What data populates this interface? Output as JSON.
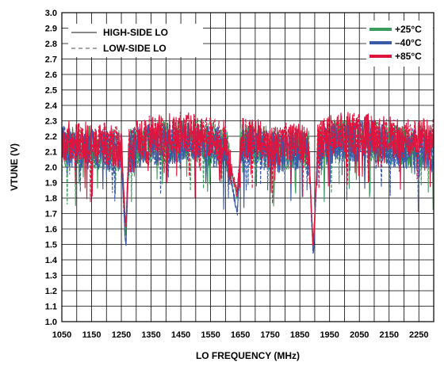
{
  "chart_data": {
    "type": "line",
    "xlabel": "LO FREQUENCY (MHz)",
    "ylabel": "VTUNE (V)",
    "xlim": [
      1050,
      2300
    ],
    "ylim": [
      1.0,
      3.0
    ],
    "grid": true,
    "x_ticks": [
      "1050",
      "1150",
      "1250",
      "1350",
      "1450",
      "1550",
      "1650",
      "1750",
      "1850",
      "1950",
      "2050",
      "2150",
      "2250"
    ],
    "y_ticks": [
      "1.0",
      "1.1",
      "1.2",
      "1.3",
      "1.4",
      "1.5",
      "1.6",
      "1.7",
      "1.8",
      "1.9",
      "2.0",
      "2.1",
      "2.2",
      "2.3",
      "2.4",
      "2.5",
      "2.6",
      "2.7",
      "2.8",
      "2.9",
      "3.0"
    ],
    "legend_style": {
      "position": "top-left",
      "entries": [
        {
          "label": "HIGH-SIDE LO",
          "dash": "solid"
        },
        {
          "label": "LOW-SIDE LO",
          "dash": "dashed"
        }
      ]
    },
    "legend_temp": {
      "position": "top-right",
      "entries": [
        {
          "label": "+25°C",
          "color": "#3a9c5a"
        },
        {
          "label": "–40°C",
          "color": "#3a5aa8"
        },
        {
          "label": "+85°C",
          "color": "#e0143c"
        }
      ]
    },
    "series": [
      {
        "name": "+25°C",
        "color": "#3a9c5a",
        "x": [
          1050,
          1100,
          1150,
          1200,
          1250,
          1265,
          1275,
          1300,
          1350,
          1400,
          1450,
          1500,
          1550,
          1600,
          1640,
          1650,
          1700,
          1750,
          1800,
          1850,
          1880,
          1895,
          1910,
          1950,
          2000,
          2050,
          2100,
          2150,
          2200,
          2250,
          2300
        ],
        "y": [
          2.15,
          2.12,
          2.13,
          2.12,
          2.1,
          1.55,
          2.1,
          2.14,
          2.16,
          2.16,
          2.18,
          2.17,
          2.16,
          2.14,
          1.8,
          2.14,
          2.15,
          2.12,
          2.12,
          2.13,
          2.1,
          1.48,
          2.12,
          2.16,
          2.17,
          2.18,
          2.17,
          2.15,
          2.13,
          2.14,
          2.12
        ]
      },
      {
        "name": "–40°C",
        "color": "#3a5aa8",
        "x": [
          1050,
          1100,
          1150,
          1200,
          1250,
          1265,
          1275,
          1300,
          1350,
          1400,
          1450,
          1500,
          1550,
          1600,
          1640,
          1650,
          1700,
          1750,
          1800,
          1850,
          1880,
          1895,
          1910,
          1950,
          2000,
          2050,
          2100,
          2150,
          2200,
          2250,
          2300
        ],
        "y": [
          2.14,
          2.1,
          2.12,
          2.11,
          2.08,
          1.45,
          2.09,
          2.13,
          2.15,
          2.15,
          2.17,
          2.16,
          2.14,
          2.12,
          1.7,
          2.13,
          2.14,
          2.1,
          2.1,
          2.11,
          2.08,
          1.4,
          2.1,
          2.15,
          2.16,
          2.17,
          2.16,
          2.14,
          2.12,
          2.13,
          2.1
        ]
      },
      {
        "name": "+85°C",
        "color": "#e0143c",
        "x": [
          1050,
          1100,
          1150,
          1200,
          1250,
          1265,
          1275,
          1300,
          1350,
          1400,
          1450,
          1500,
          1550,
          1600,
          1640,
          1650,
          1700,
          1750,
          1800,
          1850,
          1880,
          1895,
          1910,
          1950,
          2000,
          2050,
          2100,
          2150,
          2200,
          2250,
          2300
        ],
        "y": [
          2.18,
          2.15,
          2.16,
          2.15,
          2.13,
          1.6,
          2.14,
          2.18,
          2.2,
          2.21,
          2.22,
          2.21,
          2.19,
          2.17,
          1.82,
          2.18,
          2.18,
          2.15,
          2.15,
          2.16,
          2.14,
          1.45,
          2.16,
          2.2,
          2.22,
          2.22,
          2.21,
          2.2,
          2.18,
          2.2,
          2.17
        ]
      }
    ]
  }
}
